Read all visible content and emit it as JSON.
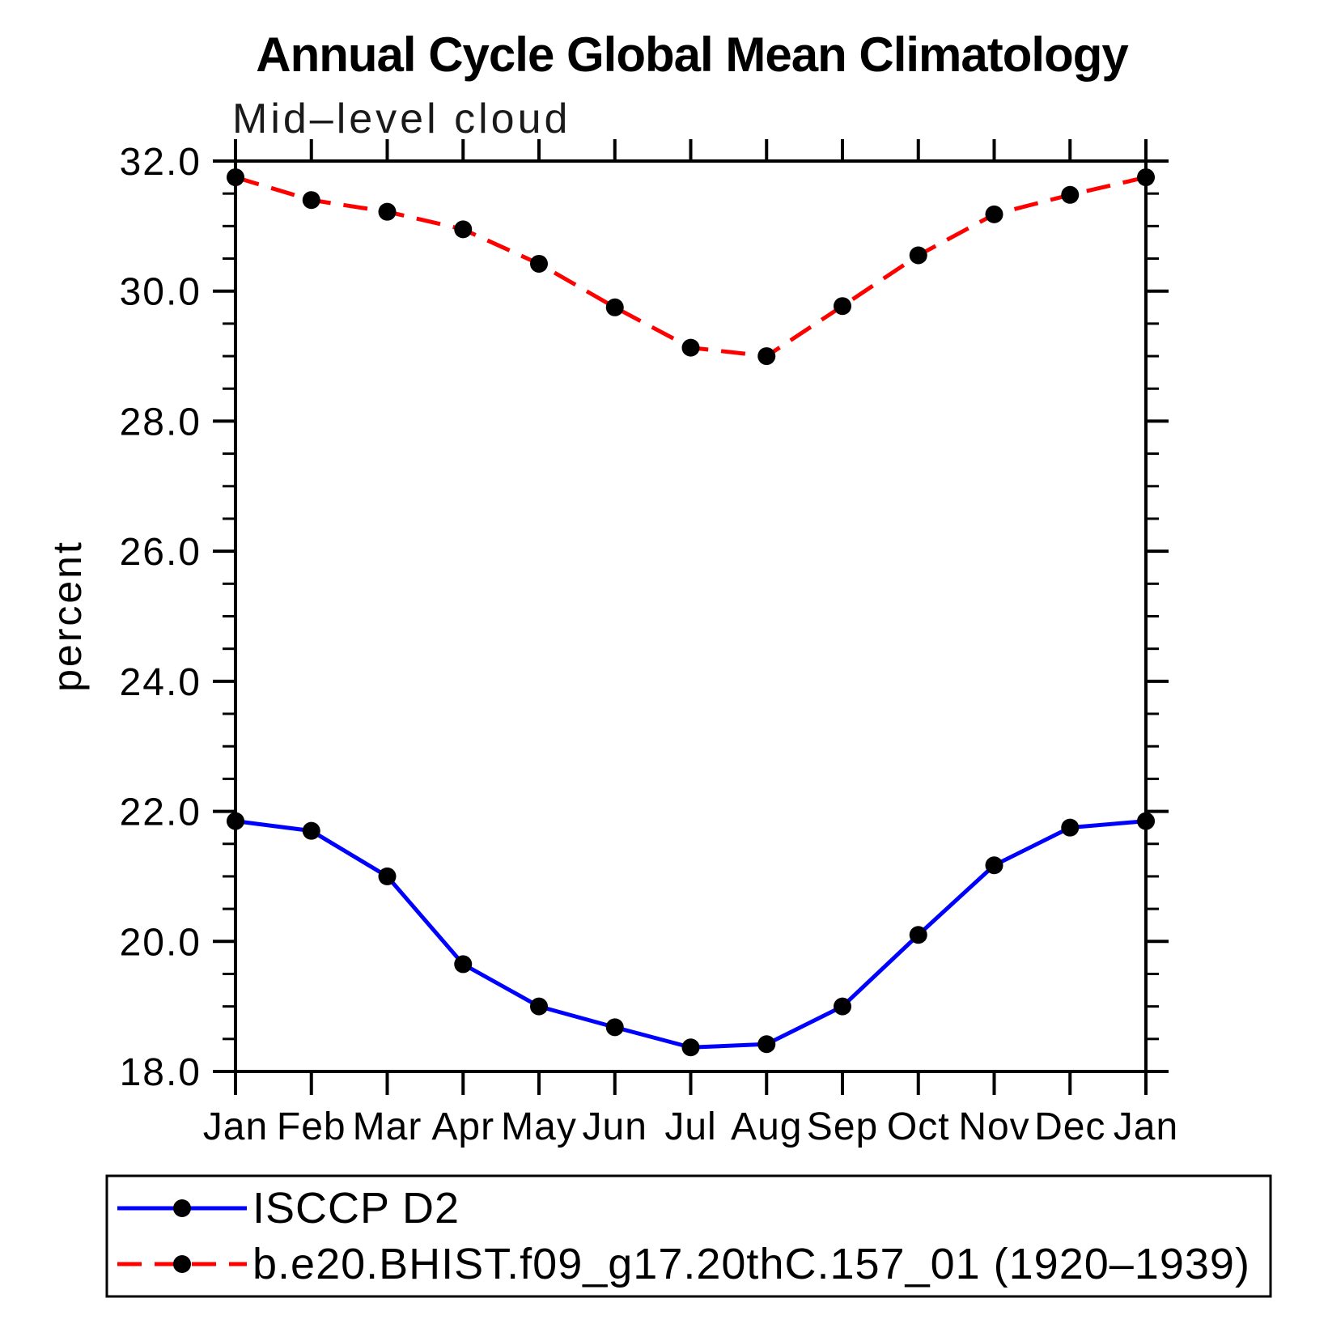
{
  "header": {
    "title": "Annual Cycle Global Mean Climatology",
    "subtitle": "Mid–level cloud"
  },
  "chart_data": {
    "type": "line",
    "title": "Annual Cycle Global Mean Climatology",
    "subtitle": "Mid–level cloud",
    "xlabel": "",
    "ylabel": "percent",
    "x_categories": [
      "Jan",
      "Feb",
      "Mar",
      "Apr",
      "May",
      "Jun",
      "Jul",
      "Aug",
      "Sep",
      "Oct",
      "Nov",
      "Dec",
      "Jan"
    ],
    "ylim": [
      18.0,
      32.0
    ],
    "y_major_step": 2.0,
    "y_minor_step": 0.5,
    "y_tick_labels": [
      "18.0",
      "20.0",
      "22.0",
      "24.0",
      "26.0",
      "28.0",
      "30.0",
      "32.0"
    ],
    "grid": false,
    "legend_position": "bottom",
    "colors": {
      "observation_line": "#0000ff",
      "model_line": "#ff0000",
      "marker": "#000000",
      "axis": "#000000",
      "background": "#ffffff"
    },
    "series": [
      {
        "name": "ISCCP D2",
        "color": "#0000ff",
        "line_style": "solid",
        "marker": "circle",
        "marker_color": "#000000",
        "values": [
          21.85,
          21.7,
          21.0,
          19.65,
          19.0,
          18.68,
          18.37,
          18.42,
          19.0,
          20.1,
          21.17,
          21.75,
          21.85
        ]
      },
      {
        "name": "b.e20.BHIST.f09_g17.20thC.157_01 (1920–1939)",
        "color": "#ff0000",
        "line_style": "dashed",
        "marker": "circle",
        "marker_color": "#000000",
        "values": [
          31.75,
          31.4,
          31.22,
          30.95,
          30.42,
          29.75,
          29.13,
          29.0,
          29.77,
          30.55,
          31.18,
          31.48,
          31.75
        ]
      }
    ]
  }
}
